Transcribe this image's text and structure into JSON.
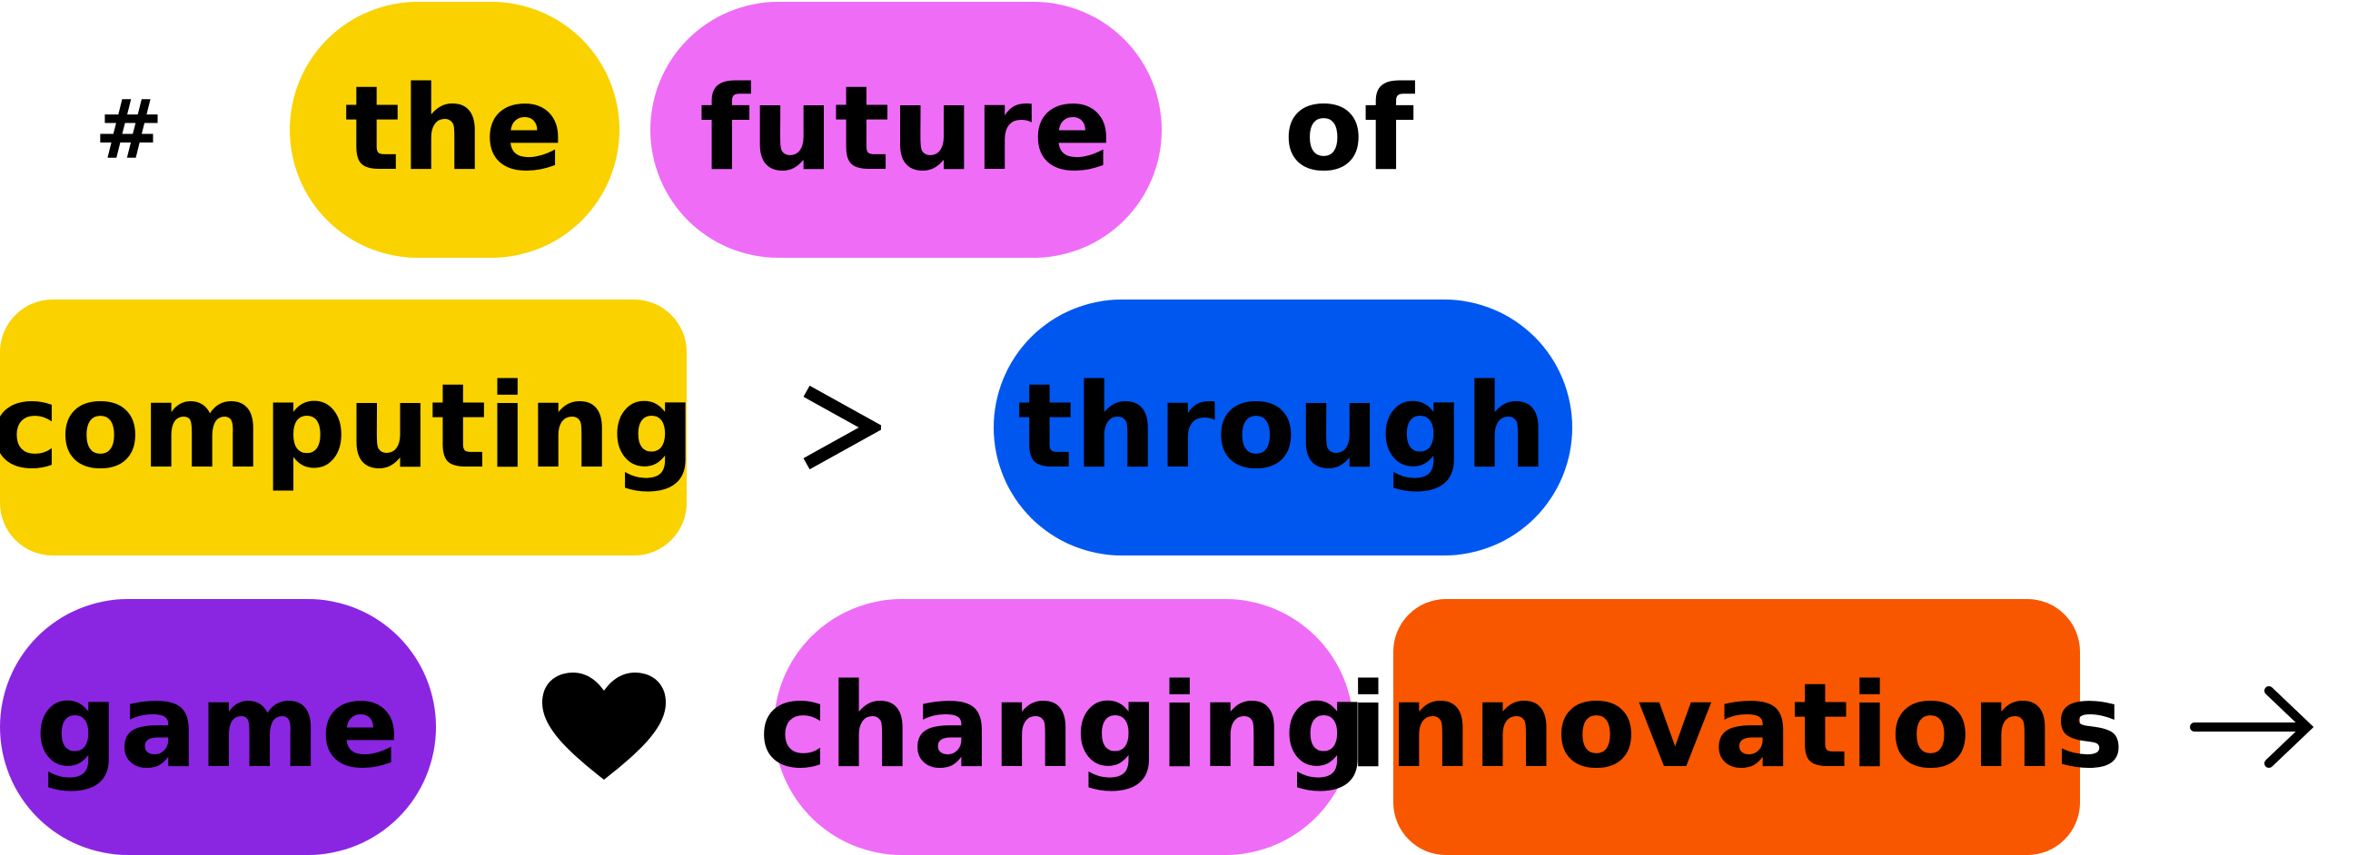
{
  "row1": {
    "hash": "#",
    "the": "the",
    "future": "future",
    "of": "of"
  },
  "row2": {
    "computing": "computing",
    "gt": ">",
    "through": "through"
  },
  "row3": {
    "game": "game",
    "heart": "heart-icon",
    "changing": "changing",
    "innovations": "innovations",
    "arrow": "arrow-right-icon"
  },
  "colors": {
    "yellow": "#FAD200",
    "pink": "#EF6CF7",
    "blue": "#0057F0",
    "purple": "#8A26E2",
    "orange": "#F85700",
    "black": "#000000"
  }
}
